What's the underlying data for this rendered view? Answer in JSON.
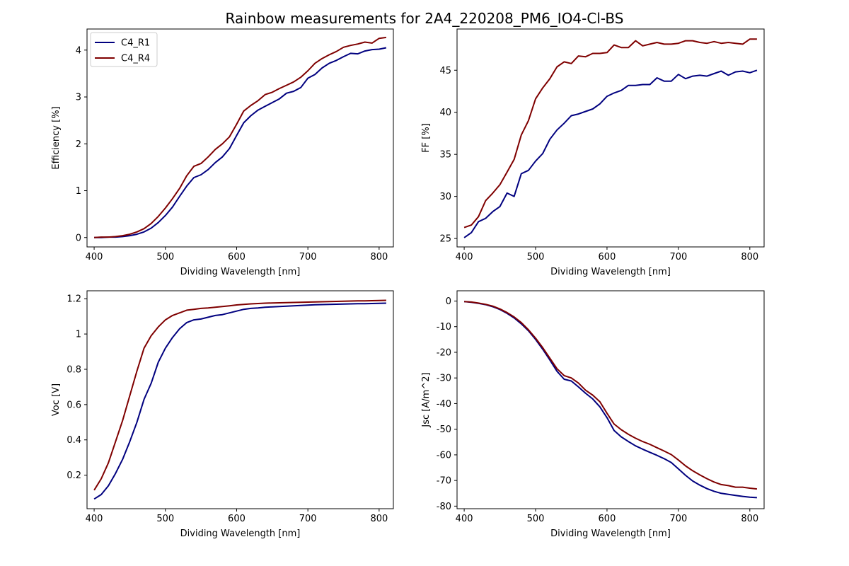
{
  "figure_title": "Rainbow measurements for 2A4_220208_PM6_IO4-Cl-BS",
  "chart_data": [
    {
      "type": "line",
      "xlabel": "Dividing Wavelength [nm]",
      "ylabel": "Efficiency [%]",
      "xlim": [
        390,
        820
      ],
      "ylim": [
        -0.2,
        4.45
      ],
      "xticks": [
        400,
        500,
        600,
        700,
        800
      ],
      "yticks": [
        0,
        1,
        2,
        3,
        4
      ],
      "legend": "top-left",
      "x": [
        400,
        410,
        420,
        430,
        440,
        450,
        460,
        470,
        480,
        490,
        500,
        510,
        520,
        530,
        540,
        550,
        560,
        570,
        580,
        590,
        600,
        610,
        620,
        630,
        640,
        650,
        660,
        670,
        680,
        690,
        700,
        710,
        720,
        730,
        740,
        750,
        760,
        770,
        780,
        790,
        800,
        810
      ],
      "series": [
        {
          "name": "C4_R1",
          "color": "#00007f",
          "values": [
            0.0,
            0.0,
            0.01,
            0.01,
            0.02,
            0.04,
            0.07,
            0.12,
            0.2,
            0.32,
            0.47,
            0.65,
            0.88,
            1.1,
            1.28,
            1.34,
            1.45,
            1.6,
            1.72,
            1.9,
            2.18,
            2.45,
            2.6,
            2.72,
            2.8,
            2.88,
            2.96,
            3.08,
            3.12,
            3.2,
            3.4,
            3.48,
            3.62,
            3.72,
            3.78,
            3.86,
            3.93,
            3.92,
            3.98,
            4.01,
            4.02,
            4.05
          ]
        },
        {
          "name": "C4_R4",
          "color": "#7f0000",
          "values": [
            0.0,
            0.01,
            0.01,
            0.02,
            0.04,
            0.07,
            0.12,
            0.19,
            0.3,
            0.45,
            0.63,
            0.83,
            1.05,
            1.32,
            1.52,
            1.58,
            1.72,
            1.88,
            2.0,
            2.15,
            2.42,
            2.7,
            2.82,
            2.92,
            3.05,
            3.1,
            3.18,
            3.25,
            3.32,
            3.42,
            3.56,
            3.72,
            3.82,
            3.9,
            3.97,
            4.06,
            4.1,
            4.13,
            4.17,
            4.15,
            4.25,
            4.27
          ]
        }
      ]
    },
    {
      "type": "line",
      "xlabel": "Dividing Wavelength [nm]",
      "ylabel": "FF [%]",
      "xlim": [
        390,
        820
      ],
      "ylim": [
        24.0,
        49.9
      ],
      "xticks": [
        400,
        500,
        600,
        700,
        800
      ],
      "yticks": [
        25,
        30,
        35,
        40,
        45
      ],
      "x": [
        400,
        410,
        420,
        430,
        440,
        450,
        460,
        470,
        480,
        490,
        500,
        510,
        520,
        530,
        540,
        550,
        560,
        570,
        580,
        590,
        600,
        610,
        620,
        630,
        640,
        650,
        660,
        670,
        680,
        690,
        700,
        710,
        720,
        730,
        740,
        750,
        760,
        770,
        780,
        790,
        800,
        810
      ],
      "series": [
        {
          "name": "C4_R1",
          "color": "#00007f",
          "values": [
            25.1,
            25.7,
            27.0,
            27.4,
            28.2,
            28.8,
            30.4,
            30.0,
            32.7,
            33.1,
            34.2,
            35.1,
            36.8,
            37.9,
            38.7,
            39.6,
            39.8,
            40.1,
            40.4,
            41.0,
            41.9,
            42.3,
            42.6,
            43.2,
            43.2,
            43.3,
            43.3,
            44.1,
            43.7,
            43.7,
            44.5,
            44.0,
            44.3,
            44.4,
            44.3,
            44.6,
            44.9,
            44.4,
            44.8,
            44.9,
            44.7,
            45.0
          ]
        },
        {
          "name": "C4_R4",
          "color": "#7f0000",
          "values": [
            26.3,
            26.6,
            27.6,
            29.5,
            30.4,
            31.4,
            32.9,
            34.4,
            37.3,
            39.0,
            41.6,
            42.9,
            44.0,
            45.4,
            46.0,
            45.8,
            46.7,
            46.6,
            47.0,
            47.0,
            47.1,
            48.0,
            47.7,
            47.7,
            48.5,
            47.9,
            48.1,
            48.3,
            48.1,
            48.1,
            48.2,
            48.5,
            48.5,
            48.3,
            48.2,
            48.4,
            48.2,
            48.3,
            48.2,
            48.1,
            48.7,
            48.7
          ]
        }
      ]
    },
    {
      "type": "line",
      "xlabel": "Dividing Wavelength [nm]",
      "ylabel": "Voc [V]",
      "xlim": [
        390,
        820
      ],
      "ylim": [
        0.01,
        1.245
      ],
      "xticks": [
        400,
        500,
        600,
        700,
        800
      ],
      "yticks": [
        0.2,
        0.4,
        0.6,
        0.8,
        1.0,
        1.2
      ],
      "x": [
        400,
        410,
        420,
        430,
        440,
        450,
        460,
        470,
        480,
        490,
        500,
        510,
        520,
        530,
        540,
        550,
        560,
        570,
        580,
        590,
        600,
        610,
        620,
        630,
        640,
        650,
        660,
        670,
        680,
        690,
        700,
        710,
        720,
        730,
        740,
        750,
        760,
        770,
        780,
        790,
        800,
        810
      ],
      "series": [
        {
          "name": "C4_R1",
          "color": "#00007f",
          "values": [
            0.065,
            0.09,
            0.14,
            0.21,
            0.29,
            0.39,
            0.5,
            0.63,
            0.72,
            0.84,
            0.92,
            0.98,
            1.03,
            1.065,
            1.08,
            1.085,
            1.095,
            1.105,
            1.11,
            1.12,
            1.13,
            1.14,
            1.145,
            1.148,
            1.152,
            1.154,
            1.156,
            1.158,
            1.16,
            1.162,
            1.164,
            1.166,
            1.167,
            1.168,
            1.169,
            1.17,
            1.171,
            1.172,
            1.172,
            1.173,
            1.174,
            1.175
          ]
        },
        {
          "name": "C4_R4",
          "color": "#7f0000",
          "values": [
            0.115,
            0.18,
            0.27,
            0.39,
            0.51,
            0.65,
            0.79,
            0.92,
            0.99,
            1.04,
            1.08,
            1.105,
            1.12,
            1.135,
            1.14,
            1.145,
            1.148,
            1.152,
            1.156,
            1.16,
            1.165,
            1.168,
            1.171,
            1.173,
            1.175,
            1.176,
            1.177,
            1.178,
            1.179,
            1.18,
            1.181,
            1.182,
            1.183,
            1.184,
            1.185,
            1.186,
            1.187,
            1.188,
            1.188,
            1.189,
            1.19,
            1.191
          ]
        }
      ]
    },
    {
      "type": "line",
      "xlabel": "Dividing Wavelength [nm]",
      "ylabel": "Jsc [A/m^2]",
      "xlim": [
        390,
        820
      ],
      "ylim": [
        -81,
        4
      ],
      "xticks": [
        400,
        500,
        600,
        700,
        800
      ],
      "yticks": [
        0,
        -10,
        -20,
        -30,
        -40,
        -50,
        -60,
        -70,
        -80
      ],
      "x": [
        400,
        410,
        420,
        430,
        440,
        450,
        460,
        470,
        480,
        490,
        500,
        510,
        520,
        530,
        540,
        550,
        560,
        570,
        580,
        590,
        600,
        610,
        620,
        630,
        640,
        650,
        660,
        670,
        680,
        690,
        700,
        710,
        720,
        730,
        740,
        750,
        760,
        770,
        780,
        790,
        800,
        810
      ],
      "series": [
        {
          "name": "C4_R1",
          "color": "#00007f",
          "values": [
            -0.2,
            -0.5,
            -0.9,
            -1.4,
            -2.2,
            -3.3,
            -4.8,
            -6.6,
            -8.9,
            -11.6,
            -15.0,
            -18.8,
            -23.0,
            -27.4,
            -30.5,
            -31.2,
            -33.5,
            -36.0,
            -38.2,
            -41.3,
            -45.5,
            -50.5,
            -53.0,
            -54.8,
            -56.5,
            -57.8,
            -59.0,
            -60.2,
            -61.5,
            -63.0,
            -65.5,
            -68.0,
            -70.2,
            -71.8,
            -73.2,
            -74.2,
            -75.0,
            -75.4,
            -75.8,
            -76.2,
            -76.5,
            -76.7
          ]
        },
        {
          "name": "C4_R4",
          "color": "#7f0000",
          "values": [
            -0.2,
            -0.4,
            -0.8,
            -1.3,
            -2.0,
            -3.1,
            -4.5,
            -6.2,
            -8.4,
            -11.2,
            -14.5,
            -18.2,
            -22.3,
            -26.4,
            -29.1,
            -30.0,
            -32.0,
            -34.8,
            -36.7,
            -39.3,
            -43.8,
            -48.0,
            -50.2,
            -52.0,
            -53.5,
            -54.8,
            -55.9,
            -57.2,
            -58.5,
            -59.9,
            -62.0,
            -64.3,
            -66.2,
            -67.8,
            -69.3,
            -70.6,
            -71.6,
            -72.0,
            -72.6,
            -72.6,
            -73.0,
            -73.3
          ]
        }
      ]
    }
  ]
}
